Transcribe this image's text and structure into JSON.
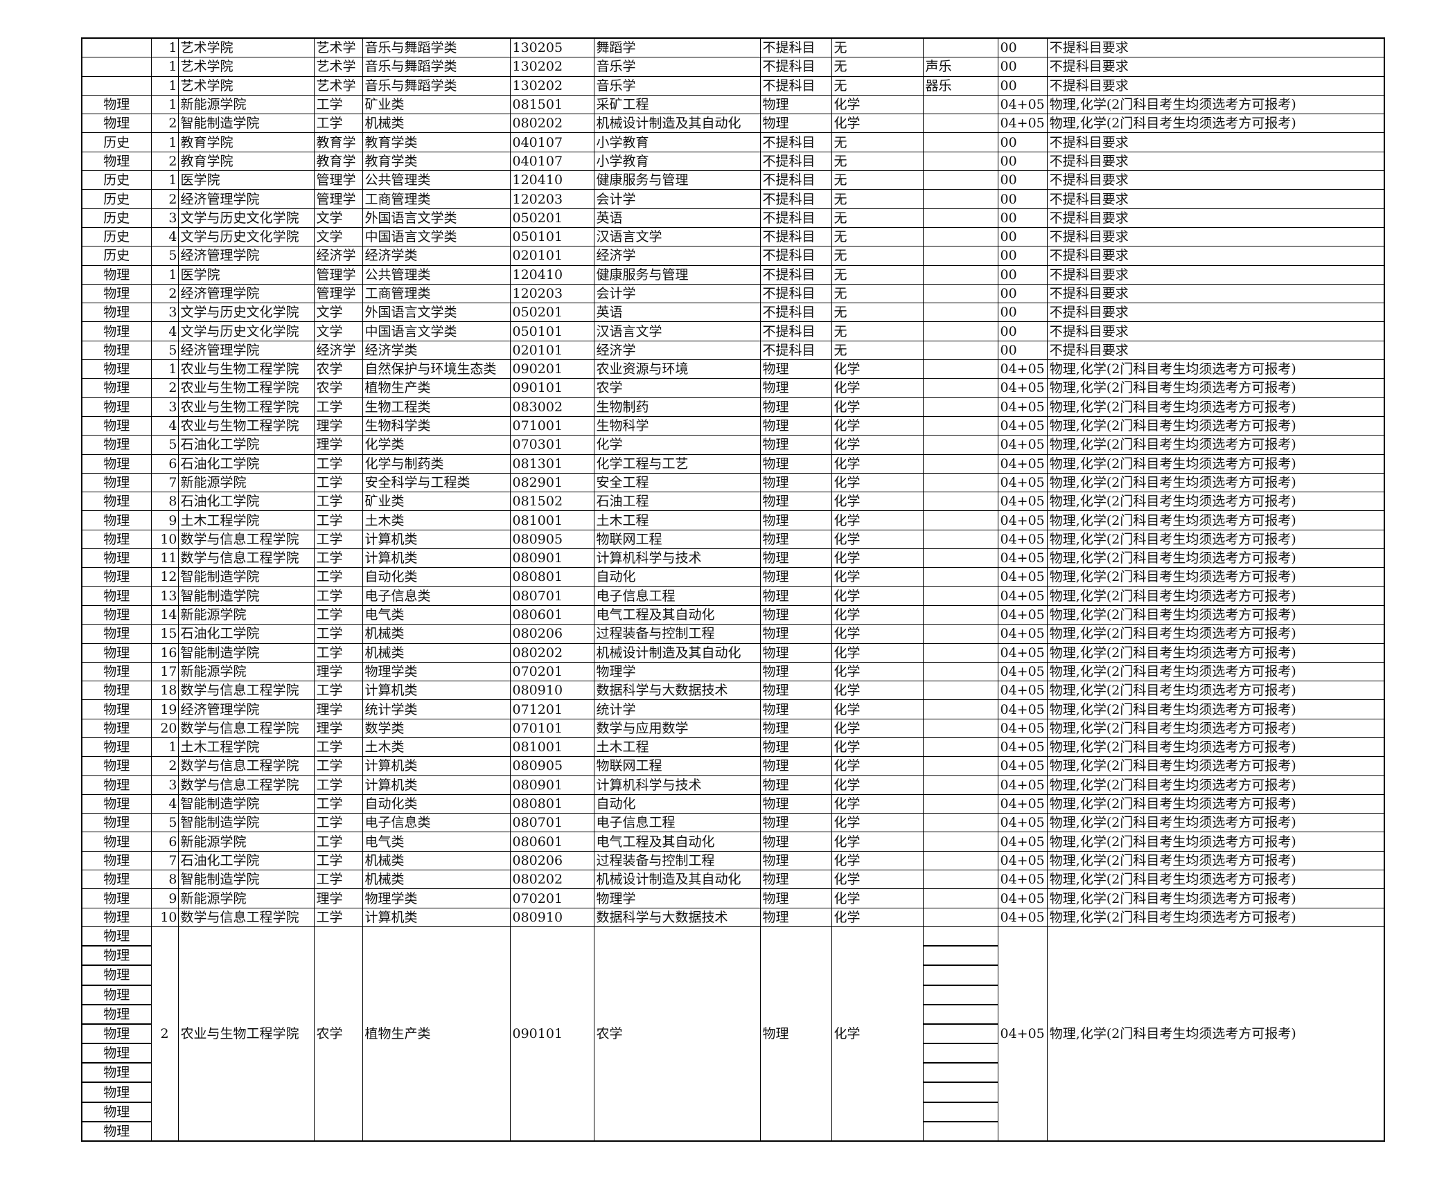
{
  "rows": [
    [
      "",
      "1",
      "艺术学院",
      "艺术学",
      "音乐与舞蹈学类",
      "130205",
      "舞蹈学",
      "不提科目",
      "无",
      "",
      "00",
      "不提科目要求"
    ],
    [
      "",
      "1",
      "艺术学院",
      "艺术学",
      "音乐与舞蹈学类",
      "130202",
      "音乐学",
      "不提科目",
      "无",
      "声乐",
      "00",
      "不提科目要求"
    ],
    [
      "",
      "1",
      "艺术学院",
      "艺术学",
      "音乐与舞蹈学类",
      "130202",
      "音乐学",
      "不提科目",
      "无",
      "器乐",
      "00",
      "不提科目要求"
    ],
    [
      "物理",
      "1",
      "新能源学院",
      "工学",
      "矿业类",
      "081501",
      "采矿工程",
      "物理",
      "化学",
      "",
      "04+05",
      "物理,化学(2门科目考生均须选考方可报考)"
    ],
    [
      "物理",
      "2",
      "智能制造学院",
      "工学",
      "机械类",
      "080202",
      "机械设计制造及其自动化",
      "物理",
      "化学",
      "",
      "04+05",
      "物理,化学(2门科目考生均须选考方可报考)"
    ],
    [
      "历史",
      "1",
      "教育学院",
      "教育学",
      "教育学类",
      "040107",
      "小学教育",
      "不提科目",
      "无",
      "",
      "00",
      "不提科目要求"
    ],
    [
      "物理",
      "2",
      "教育学院",
      "教育学",
      "教育学类",
      "040107",
      "小学教育",
      "不提科目",
      "无",
      "",
      "00",
      "不提科目要求"
    ],
    [
      "历史",
      "1",
      "医学院",
      "管理学",
      "公共管理类",
      "120410",
      "健康服务与管理",
      "不提科目",
      "无",
      "",
      "00",
      "不提科目要求"
    ],
    [
      "历史",
      "2",
      "经济管理学院",
      "管理学",
      "工商管理类",
      "120203",
      "会计学",
      "不提科目",
      "无",
      "",
      "00",
      "不提科目要求"
    ],
    [
      "历史",
      "3",
      "文学与历史文化学院",
      "文学",
      "外国语言文学类",
      "050201",
      "英语",
      "不提科目",
      "无",
      "",
      "00",
      "不提科目要求"
    ],
    [
      "历史",
      "4",
      "文学与历史文化学院",
      "文学",
      "中国语言文学类",
      "050101",
      "汉语言文学",
      "不提科目",
      "无",
      "",
      "00",
      "不提科目要求"
    ],
    [
      "历史",
      "5",
      "经济管理学院",
      "经济学",
      "经济学类",
      "020101",
      "经济学",
      "不提科目",
      "无",
      "",
      "00",
      "不提科目要求"
    ],
    [
      "物理",
      "1",
      "医学院",
      "管理学",
      "公共管理类",
      "120410",
      "健康服务与管理",
      "不提科目",
      "无",
      "",
      "00",
      "不提科目要求"
    ],
    [
      "物理",
      "2",
      "经济管理学院",
      "管理学",
      "工商管理类",
      "120203",
      "会计学",
      "不提科目",
      "无",
      "",
      "00",
      "不提科目要求"
    ],
    [
      "物理",
      "3",
      "文学与历史文化学院",
      "文学",
      "外国语言文学类",
      "050201",
      "英语",
      "不提科目",
      "无",
      "",
      "00",
      "不提科目要求"
    ],
    [
      "物理",
      "4",
      "文学与历史文化学院",
      "文学",
      "中国语言文学类",
      "050101",
      "汉语言文学",
      "不提科目",
      "无",
      "",
      "00",
      "不提科目要求"
    ],
    [
      "物理",
      "5",
      "经济管理学院",
      "经济学",
      "经济学类",
      "020101",
      "经济学",
      "不提科目",
      "无",
      "",
      "00",
      "不提科目要求"
    ],
    [
      "物理",
      "1",
      "农业与生物工程学院",
      "农学",
      "自然保护与环境生态类",
      "090201",
      "农业资源与环境",
      "物理",
      "化学",
      "",
      "04+05",
      "物理,化学(2门科目考生均须选考方可报考)"
    ],
    [
      "物理",
      "2",
      "农业与生物工程学院",
      "农学",
      "植物生产类",
      "090101",
      "农学",
      "物理",
      "化学",
      "",
      "04+05",
      "物理,化学(2门科目考生均须选考方可报考)"
    ],
    [
      "物理",
      "3",
      "农业与生物工程学院",
      "工学",
      "生物工程类",
      "083002",
      "生物制药",
      "物理",
      "化学",
      "",
      "04+05",
      "物理,化学(2门科目考生均须选考方可报考)"
    ],
    [
      "物理",
      "4",
      "农业与生物工程学院",
      "理学",
      "生物科学类",
      "071001",
      "生物科学",
      "物理",
      "化学",
      "",
      "04+05",
      "物理,化学(2门科目考生均须选考方可报考)"
    ],
    [
      "物理",
      "5",
      "石油化工学院",
      "理学",
      "化学类",
      "070301",
      "化学",
      "物理",
      "化学",
      "",
      "04+05",
      "物理,化学(2门科目考生均须选考方可报考)"
    ],
    [
      "物理",
      "6",
      "石油化工学院",
      "工学",
      "化学与制药类",
      "081301",
      "化学工程与工艺",
      "物理",
      "化学",
      "",
      "04+05",
      "物理,化学(2门科目考生均须选考方可报考)"
    ],
    [
      "物理",
      "7",
      "新能源学院",
      "工学",
      "安全科学与工程类",
      "082901",
      "安全工程",
      "物理",
      "化学",
      "",
      "04+05",
      "物理,化学(2门科目考生均须选考方可报考)"
    ],
    [
      "物理",
      "8",
      "石油化工学院",
      "工学",
      "矿业类",
      "081502",
      "石油工程",
      "物理",
      "化学",
      "",
      "04+05",
      "物理,化学(2门科目考生均须选考方可报考)"
    ],
    [
      "物理",
      "9",
      "土木工程学院",
      "工学",
      "土木类",
      "081001",
      "土木工程",
      "物理",
      "化学",
      "",
      "04+05",
      "物理,化学(2门科目考生均须选考方可报考)"
    ],
    [
      "物理",
      "10",
      "数学与信息工程学院",
      "工学",
      "计算机类",
      "080905",
      "物联网工程",
      "物理",
      "化学",
      "",
      "04+05",
      "物理,化学(2门科目考生均须选考方可报考)"
    ],
    [
      "物理",
      "11",
      "数学与信息工程学院",
      "工学",
      "计算机类",
      "080901",
      "计算机科学与技术",
      "物理",
      "化学",
      "",
      "04+05",
      "物理,化学(2门科目考生均须选考方可报考)"
    ],
    [
      "物理",
      "12",
      "智能制造学院",
      "工学",
      "自动化类",
      "080801",
      "自动化",
      "物理",
      "化学",
      "",
      "04+05",
      "物理,化学(2门科目考生均须选考方可报考)"
    ],
    [
      "物理",
      "13",
      "智能制造学院",
      "工学",
      "电子信息类",
      "080701",
      "电子信息工程",
      "物理",
      "化学",
      "",
      "04+05",
      "物理,化学(2门科目考生均须选考方可报考)"
    ],
    [
      "物理",
      "14",
      "新能源学院",
      "工学",
      "电气类",
      "080601",
      "电气工程及其自动化",
      "物理",
      "化学",
      "",
      "04+05",
      "物理,化学(2门科目考生均须选考方可报考)"
    ],
    [
      "物理",
      "15",
      "石油化工学院",
      "工学",
      "机械类",
      "080206",
      "过程装备与控制工程",
      "物理",
      "化学",
      "",
      "04+05",
      "物理,化学(2门科目考生均须选考方可报考)"
    ],
    [
      "物理",
      "16",
      "智能制造学院",
      "工学",
      "机械类",
      "080202",
      "机械设计制造及其自动化",
      "物理",
      "化学",
      "",
      "04+05",
      "物理,化学(2门科目考生均须选考方可报考)"
    ],
    [
      "物理",
      "17",
      "新能源学院",
      "理学",
      "物理学类",
      "070201",
      "物理学",
      "物理",
      "化学",
      "",
      "04+05",
      "物理,化学(2门科目考生均须选考方可报考)"
    ],
    [
      "物理",
      "18",
      "数学与信息工程学院",
      "工学",
      "计算机类",
      "080910",
      "数据科学与大数据技术",
      "物理",
      "化学",
      "",
      "04+05",
      "物理,化学(2门科目考生均须选考方可报考)"
    ],
    [
      "物理",
      "19",
      "经济管理学院",
      "理学",
      "统计学类",
      "071201",
      "统计学",
      "物理",
      "化学",
      "",
      "04+05",
      "物理,化学(2门科目考生均须选考方可报考)"
    ],
    [
      "物理",
      "20",
      "数学与信息工程学院",
      "理学",
      "数学类",
      "070101",
      "数学与应用数学",
      "物理",
      "化学",
      "",
      "04+05",
      "物理,化学(2门科目考生均须选考方可报考)"
    ],
    [
      "物理",
      "1",
      "土木工程学院",
      "工学",
      "土木类",
      "081001",
      "土木工程",
      "物理",
      "化学",
      "",
      "04+05",
      "物理,化学(2门科目考生均须选考方可报考)"
    ],
    [
      "物理",
      "2",
      "数学与信息工程学院",
      "工学",
      "计算机类",
      "080905",
      "物联网工程",
      "物理",
      "化学",
      "",
      "04+05",
      "物理,化学(2门科目考生均须选考方可报考)"
    ],
    [
      "物理",
      "3",
      "数学与信息工程学院",
      "工学",
      "计算机类",
      "080901",
      "计算机科学与技术",
      "物理",
      "化学",
      "",
      "04+05",
      "物理,化学(2门科目考生均须选考方可报考)"
    ],
    [
      "物理",
      "4",
      "智能制造学院",
      "工学",
      "自动化类",
      "080801",
      "自动化",
      "物理",
      "化学",
      "",
      "04+05",
      "物理,化学(2门科目考生均须选考方可报考)"
    ],
    [
      "物理",
      "5",
      "智能制造学院",
      "工学",
      "电子信息类",
      "080701",
      "电子信息工程",
      "物理",
      "化学",
      "",
      "04+05",
      "物理,化学(2门科目考生均须选考方可报考)"
    ],
    [
      "物理",
      "6",
      "新能源学院",
      "工学",
      "电气类",
      "080601",
      "电气工程及其自动化",
      "物理",
      "化学",
      "",
      "04+05",
      "物理,化学(2门科目考生均须选考方可报考)"
    ],
    [
      "物理",
      "7",
      "石油化工学院",
      "工学",
      "机械类",
      "080206",
      "过程装备与控制工程",
      "物理",
      "化学",
      "",
      "04+05",
      "物理,化学(2门科目考生均须选考方可报考)"
    ],
    [
      "物理",
      "8",
      "智能制造学院",
      "工学",
      "机械类",
      "080202",
      "机械设计制造及其自动化",
      "物理",
      "化学",
      "",
      "04+05",
      "物理,化学(2门科目考生均须选考方可报考)"
    ],
    [
      "物理",
      "9",
      "新能源学院",
      "理学",
      "物理学类",
      "070201",
      "物理学",
      "物理",
      "化学",
      "",
      "04+05",
      "物理,化学(2门科目考生均须选考方可报考)"
    ],
    [
      "物理",
      "10",
      "数学与信息工程学院",
      "工学",
      "计算机类",
      "080910",
      "数据科学与大数据技术",
      "物理",
      "化学",
      "",
      "04+05",
      "物理,化学(2门科目考生均须选考方可报考)"
    ]
  ],
  "merged_block": {
    "subject_cells": [
      "物理",
      "物理",
      "物理",
      "物理",
      "物理",
      "物理",
      "物理",
      "物理",
      "物理",
      "物理",
      "物理"
    ],
    "cells": [
      "2",
      "农业与生物工程学院",
      "农学",
      "植物生产类",
      "090101",
      "农学",
      "物理",
      "化学"
    ],
    "code": "04+05",
    "requirement": "物理,化学(2门科目考生均须选考方可报考)"
  }
}
